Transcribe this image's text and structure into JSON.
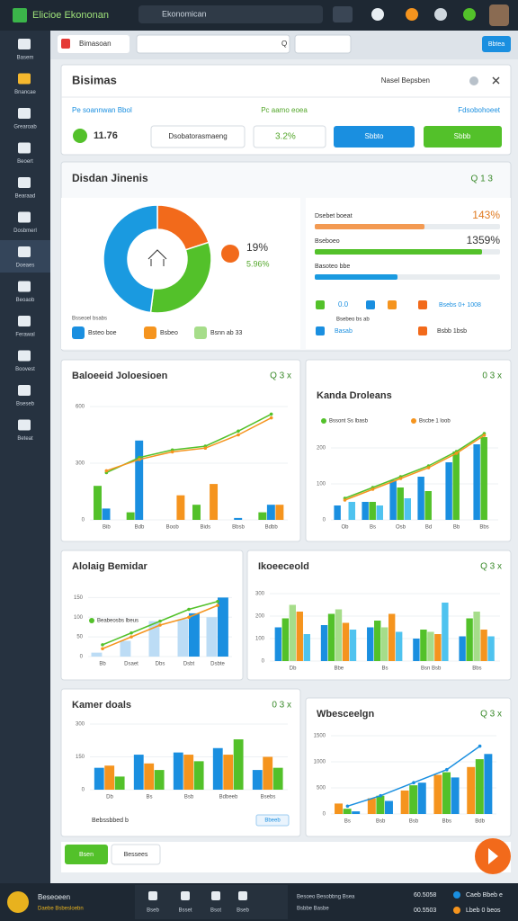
{
  "topbar": {
    "app_name": "Elicioe Ekononan",
    "search": "Ekonomican"
  },
  "sidebar": [
    "Basem",
    "Bnancae",
    "Grearoab",
    "Beoert",
    "Bearaad",
    "Dosbmerl",
    "Doeaes",
    "Beoaob",
    "Ferawal",
    "Boovest",
    "Bseseb",
    "Beteat"
  ],
  "toolbar": {
    "tab": "Bimasoan",
    "search_icon": "Q",
    "button": "Bbtea"
  },
  "summary": {
    "title": "Bisimas",
    "link": "Nasel Bepsben",
    "col_labels": [
      "Pe soannwan Bbol",
      "Pc aamo eoea",
      "Fdsobohoeet"
    ],
    "value": "11.76",
    "field": "Dsobatorasmaeng",
    "change": "3.2%",
    "buttons": [
      "Sbbto",
      "Sbbb"
    ]
  },
  "overview": {
    "title": "Disdan Jinenis",
    "controls": "Q 1 3",
    "donut": {
      "values": [
        20,
        32,
        48
      ],
      "colors": [
        "#f26a1b",
        "#53c12a",
        "#1a9ae0"
      ]
    },
    "center_stats": [
      "19%",
      "5.96%"
    ],
    "caption": "Bsseoel bsabs",
    "legend": [
      "Bsteo boe",
      "Bsbeo",
      "Bsnn ab 33"
    ],
    "progress": [
      {
        "label": "Dsebet boeat",
        "text": "143%",
        "color": "#f39a52"
      },
      {
        "label": "Bseboeo",
        "text": "1359%",
        "color": "#53c12a"
      },
      {
        "label": "Basoteo bbe",
        "color": "#1a9ae0"
      }
    ],
    "icon_row": [
      "0.0",
      "Bsebeo bs ab",
      "Bsebs 0+ 1008",
      "Basab",
      "Bsbb 1bsb"
    ]
  },
  "charts": [
    {
      "title": "Baloeeid Joloesioen",
      "controls": "Q 3 x",
      "ylim": [
        0,
        600
      ],
      "yticks": [
        0,
        300,
        600
      ],
      "categories": [
        "Bib",
        "Bdb",
        "Boob",
        "Bids",
        "Bbsb",
        "Bdbb"
      ],
      "series": [
        {
          "kind": "bar",
          "color": "#53c12a",
          "values": [
            180,
            40,
            0,
            80,
            0,
            40
          ]
        },
        {
          "kind": "bar",
          "color": "#1a8fe0",
          "values": [
            60,
            420,
            0,
            0,
            10,
            80
          ]
        },
        {
          "kind": "bar",
          "color": "#f5941e",
          "values": [
            0,
            0,
            130,
            190,
            0,
            80
          ]
        },
        {
          "kind": "line",
          "color": "#53c12a",
          "values": [
            250,
            330,
            370,
            390,
            470,
            560
          ]
        },
        {
          "kind": "line",
          "color": "#f5941e",
          "values": [
            260,
            320,
            360,
            380,
            450,
            540
          ]
        }
      ]
    },
    {
      "title": "Kanda Droleans",
      "controls": "0 3 x",
      "ylim": [
        0,
        250
      ],
      "yticks": [
        0,
        100,
        200
      ],
      "categories": [
        "Ob",
        "Bs",
        "Osb",
        "Bd",
        "Bb",
        "Bbs"
      ],
      "series": [
        {
          "kind": "bar",
          "color": "#1a8fe0",
          "values": [
            40,
            50,
            110,
            120,
            160,
            210
          ]
        },
        {
          "kind": "bar",
          "color": "#53c12a",
          "values": [
            0,
            50,
            90,
            80,
            190,
            230
          ]
        },
        {
          "kind": "bar",
          "color": "#4fc3ef",
          "values": [
            50,
            40,
            60,
            0,
            0,
            0
          ]
        },
        {
          "kind": "line",
          "name": "Bssont Ss lbasb",
          "color": "#53c12a",
          "values": [
            60,
            90,
            120,
            150,
            190,
            240
          ]
        },
        {
          "kind": "line",
          "name": "Bscbe 1 loob",
          "color": "#f5941e",
          "values": [
            55,
            85,
            115,
            145,
            185,
            235
          ]
        }
      ]
    },
    {
      "title": "Alolaig Bemidar",
      "controls": "",
      "ylim": [
        0,
        160
      ],
      "yticks": [
        0,
        50,
        100,
        150
      ],
      "categories": [
        "Bb",
        "Dsaet",
        "Dbs",
        "Dsbt",
        "Dsbte"
      ],
      "series": [
        {
          "kind": "bar",
          "color": "#bcdcf5",
          "values": [
            10,
            40,
            90,
            95,
            100
          ]
        },
        {
          "kind": "bar",
          "color": "#1a8fe0",
          "values": [
            0,
            0,
            0,
            110,
            150
          ]
        },
        {
          "kind": "line",
          "name": "Beabeosbs lbeus",
          "color": "#53c12a",
          "values": [
            30,
            60,
            90,
            120,
            140
          ]
        },
        {
          "kind": "line",
          "color": "#f5941e",
          "values": [
            20,
            50,
            80,
            100,
            130
          ]
        }
      ]
    },
    {
      "title": "Ikoeeceold",
      "controls": "Q 3 x",
      "ylim": [
        0,
        300
      ],
      "yticks": [
        0,
        100,
        200,
        300
      ],
      "categories": [
        "Db",
        "Bbe",
        "Bs",
        "Bsn Bsb",
        "Bbs"
      ],
      "series": [
        {
          "kind": "bar",
          "color": "#1a8fe0",
          "values": [
            150,
            160,
            150,
            100,
            110
          ]
        },
        {
          "kind": "bar",
          "color": "#53c12a",
          "values": [
            190,
            210,
            180,
            140,
            190
          ]
        },
        {
          "kind": "bar",
          "color": "#a6dd8a",
          "values": [
            250,
            230,
            150,
            130,
            220
          ]
        },
        {
          "kind": "bar",
          "color": "#f5941e",
          "values": [
            220,
            170,
            210,
            120,
            140
          ]
        },
        {
          "kind": "bar",
          "color": "#4fc3ef",
          "values": [
            120,
            140,
            130,
            260,
            110
          ]
        }
      ]
    },
    {
      "title": "Kamer doals",
      "controls": "0 3 x",
      "ylim": [
        0,
        300
      ],
      "yticks": [
        0,
        150,
        300
      ],
      "categories": [
        "Db",
        "Bs",
        "Bsb",
        "Bdbeeb",
        "Bsebs"
      ],
      "series": [
        {
          "kind": "bar",
          "color": "#1a8fe0",
          "values": [
            100,
            160,
            170,
            190,
            90
          ]
        },
        {
          "kind": "bar",
          "color": "#f5941e",
          "values": [
            110,
            120,
            160,
            160,
            150
          ]
        },
        {
          "kind": "bar",
          "color": "#53c12a",
          "values": [
            60,
            90,
            130,
            230,
            100
          ]
        }
      ],
      "footer_note": "Bebssbbed b",
      "footer_tag": "Bbeeb"
    },
    {
      "title": "Wbesceelgn",
      "controls": "Q 3 x",
      "ylim": [
        0,
        1500
      ],
      "yticks": [
        0,
        500,
        1000,
        1500
      ],
      "categories": [
        "Bs",
        "Bsb",
        "Bsb",
        "Bbs",
        "Bdb"
      ],
      "series": [
        {
          "kind": "bar",
          "color": "#f5941e",
          "values": [
            200,
            300,
            450,
            750,
            900
          ]
        },
        {
          "kind": "bar",
          "color": "#53c12a",
          "values": [
            100,
            350,
            550,
            800,
            1050
          ]
        },
        {
          "kind": "bar",
          "color": "#1a8fe0",
          "values": [
            50,
            250,
            600,
            700,
            1150
          ]
        },
        {
          "kind": "line",
          "color": "#1a8fe0",
          "values": [
            150,
            350,
            600,
            850,
            1300
          ]
        }
      ]
    }
  ],
  "footer_buttons": [
    "Bsen",
    "Bessees"
  ],
  "bottombar": {
    "brand": "Beseoeen",
    "sub": "Daebe Bsbesloebn",
    "nav": [
      "Bseb",
      "Bsset",
      "Bsot",
      "Bseb"
    ],
    "center": [
      "Besoeo Besobbng Bsea",
      "Bsbbe Basbe"
    ],
    "right": [
      "60.5058",
      "Caeb Bbeb e",
      "00.5503",
      "Lbeb 0 beos"
    ]
  }
}
